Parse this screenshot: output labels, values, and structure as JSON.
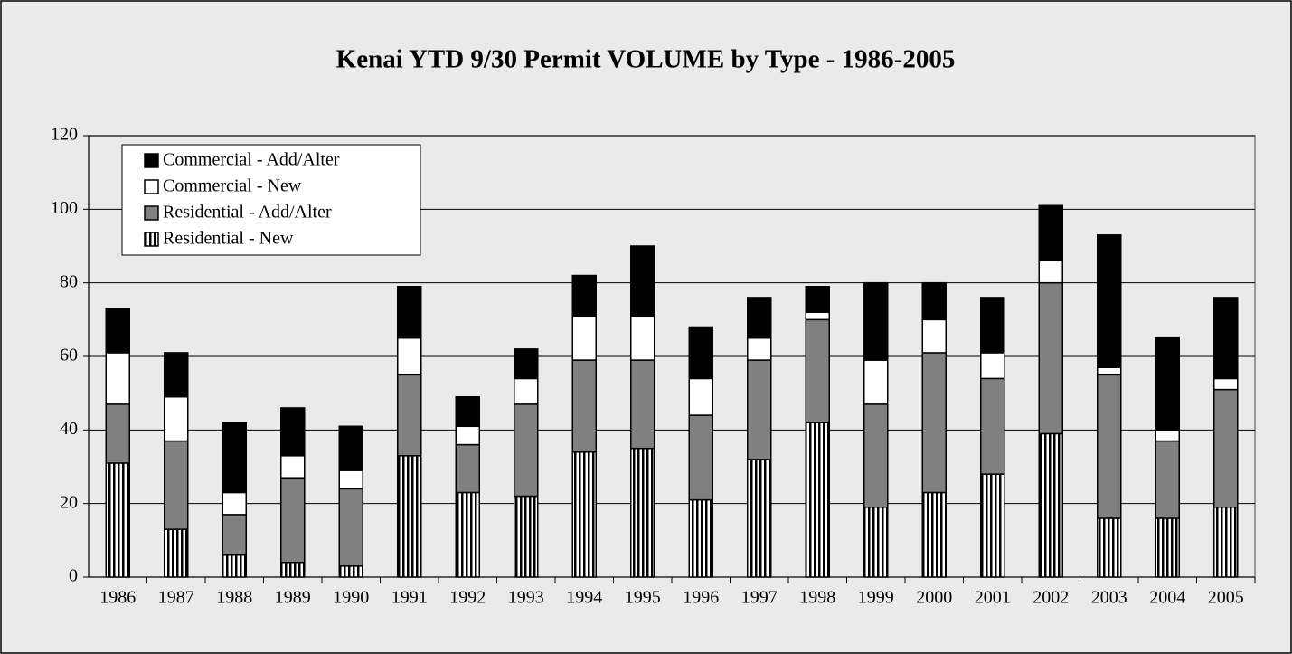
{
  "chart_data": {
    "type": "stacked-bar",
    "title": "Kenai YTD 9/30 Permit VOLUME by Type - 1986-2005",
    "categories": [
      "1986",
      "1987",
      "1988",
      "1989",
      "1990",
      "1991",
      "1992",
      "1993",
      "1994",
      "1995",
      "1996",
      "1997",
      "1998",
      "1999",
      "2000",
      "2001",
      "2002",
      "2003",
      "2004",
      "2005"
    ],
    "series": [
      {
        "name": "Residential - New",
        "color": "#000000",
        "pattern": "vertical-stripes",
        "values": [
          31,
          13,
          6,
          4,
          3,
          33,
          23,
          22,
          34,
          35,
          21,
          32,
          42,
          19,
          23,
          28,
          39,
          16,
          16,
          19
        ]
      },
      {
        "name": "Residential - Add/Alter",
        "color": "#808080",
        "values": [
          16,
          24,
          11,
          23,
          21,
          22,
          13,
          25,
          25,
          24,
          23,
          27,
          28,
          28,
          38,
          26,
          41,
          39,
          21,
          32
        ]
      },
      {
        "name": "Commercial - New",
        "color": "#ffffff",
        "values": [
          14,
          12,
          6,
          6,
          5,
          10,
          5,
          7,
          12,
          12,
          10,
          6,
          2,
          12,
          9,
          7,
          6,
          2,
          3,
          3
        ]
      },
      {
        "name": "Commercial - Add/Alter",
        "color": "#000000",
        "values": [
          12,
          12,
          19,
          13,
          12,
          14,
          8,
          8,
          11,
          19,
          14,
          11,
          7,
          21,
          10,
          15,
          15,
          36,
          25,
          22
        ]
      }
    ],
    "ylim": [
      0,
      120
    ],
    "yticks": [
      0,
      20,
      40,
      60,
      80,
      100,
      120
    ],
    "grid": true,
    "legend": "top-left"
  }
}
